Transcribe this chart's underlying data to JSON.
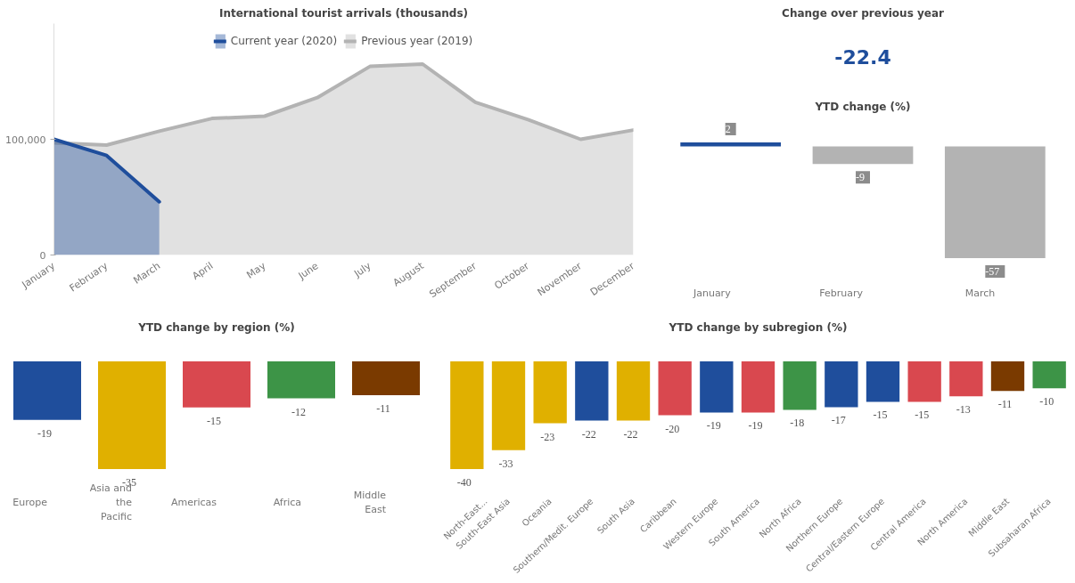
{
  "chart_data": [
    {
      "type": "area",
      "title": "International tourist arrivals (thousands)",
      "categories": [
        "January",
        "February",
        "March",
        "April",
        "May",
        "June",
        "July",
        "August",
        "September",
        "October",
        "November",
        "December"
      ],
      "series": [
        {
          "name": "Current year (2020)",
          "color": "#1f4e9c",
          "values": [
            100000,
            86000,
            46000,
            null,
            null,
            null,
            null,
            null,
            null,
            null,
            null,
            null
          ]
        },
        {
          "name": "Previous year (2019)",
          "color": "#b3b3b3",
          "values": [
            97000,
            95000,
            107000,
            118000,
            120000,
            136000,
            163000,
            165000,
            132000,
            117000,
            100000,
            108000
          ]
        }
      ],
      "ylim": [
        0,
        200000
      ],
      "yticks": [
        0,
        {
          "value": 100000,
          "label": "100,000"
        }
      ],
      "legend": "top center",
      "grid": false
    },
    {
      "type": "other",
      "title": "Change over previous year",
      "annotations": [
        "-22.4"
      ]
    },
    {
      "type": "bar",
      "title": "YTD change (%)",
      "categories": [
        "January",
        "February",
        "March"
      ],
      "values": [
        2,
        -9,
        -57
      ],
      "colors": [
        "#1f4e9c",
        "#b3b3b3",
        "#b3b3b3"
      ],
      "data_labels": true,
      "tick_labels": "x",
      "grid": false
    },
    {
      "type": "bar",
      "title": "YTD change by region (%)",
      "categories": [
        "Europe",
        "Asia and the Pacific",
        "Americas",
        "Africa",
        "Middle East"
      ],
      "values": [
        -19,
        -35,
        -15,
        -12,
        -11
      ],
      "colors": [
        "#1f4e9c",
        "#e0b000",
        "#d9484f",
        "#3d9447",
        "#7a3a00"
      ],
      "data_labels": true,
      "tick_labels": "x",
      "grid": false
    },
    {
      "type": "bar",
      "title": "YTD change by subregion (%)",
      "categories": [
        "North-East...",
        "South-East Asia",
        "Oceania",
        "Southern/Medit. Europe",
        "South Asia",
        "Caribbean",
        "Western Europe",
        "South America",
        "North Africa",
        "Northern Europe",
        "Central/Eastern Europe",
        "Central America",
        "North America",
        "Middle East",
        "Subsaharan Africa"
      ],
      "values": [
        -40,
        -33,
        -23,
        -22,
        -22,
        -20,
        -19,
        -19,
        -18,
        -17,
        -15,
        -15,
        -13,
        -11,
        -10
      ],
      "colors": [
        "#e0b000",
        "#e0b000",
        "#e0b000",
        "#1f4e9c",
        "#e0b000",
        "#d9484f",
        "#1f4e9c",
        "#d9484f",
        "#3d9447",
        "#1f4e9c",
        "#1f4e9c",
        "#d9484f",
        "#d9484f",
        "#7a3a00",
        "#3d9447"
      ],
      "data_labels": true,
      "tick_labels": "x",
      "grid": false
    }
  ]
}
